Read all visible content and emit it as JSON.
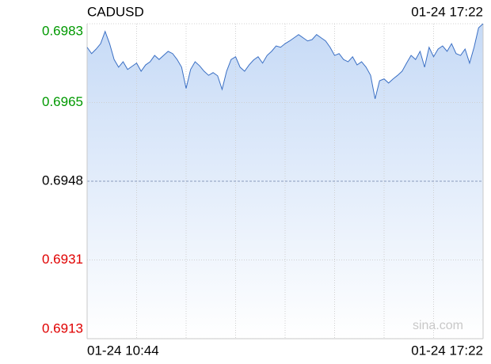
{
  "chart_data": {
    "type": "area-line",
    "title": "CADUSD",
    "timestamp": "01-24 17:22",
    "watermark": "sina.com",
    "x": [
      "01-24 10:44",
      null,
      null,
      null,
      null,
      null,
      null,
      null,
      null,
      null,
      null,
      null,
      null,
      null,
      null,
      null,
      null,
      null,
      null,
      null,
      null,
      null,
      null,
      null,
      null,
      null,
      null,
      null,
      null,
      null,
      null,
      null,
      null,
      null,
      null,
      null,
      null,
      null,
      null,
      null,
      null,
      null,
      null,
      null,
      null,
      null,
      null,
      null,
      null,
      null,
      null,
      null,
      null,
      null,
      null,
      null,
      null,
      null,
      null,
      null,
      null,
      null,
      null,
      null,
      null,
      null,
      null,
      null,
      null,
      null,
      null,
      null,
      null,
      null,
      null,
      null,
      null,
      null,
      null,
      null,
      null,
      null,
      null,
      null,
      null,
      null,
      null,
      null,
      "01-24 17:22"
    ],
    "series": [
      {
        "name": "CADUSD",
        "color": "#3a6fc4",
        "values": [
          0.69776,
          0.69762,
          0.69772,
          0.69784,
          0.69811,
          0.69784,
          0.69749,
          0.69732,
          0.69744,
          0.69727,
          0.69734,
          0.69741,
          0.69723,
          0.69737,
          0.69744,
          0.69758,
          0.69749,
          0.69758,
          0.69767,
          0.69762,
          0.69749,
          0.69732,
          0.69685,
          0.69727,
          0.69744,
          0.69735,
          0.69723,
          0.69714,
          0.6972,
          0.69713,
          0.69683,
          0.69723,
          0.69749,
          0.69755,
          0.69732,
          0.69723,
          0.69737,
          0.69748,
          0.69755,
          0.69741,
          0.69758,
          0.69767,
          0.69779,
          0.69776,
          0.69784,
          0.6979,
          0.69797,
          0.69804,
          0.69797,
          0.6979,
          0.69793,
          0.69804,
          0.69797,
          0.6979,
          0.69776,
          0.69758,
          0.69762,
          0.69749,
          0.69744,
          0.69755,
          0.69737,
          0.69744,
          0.69732,
          0.69714,
          0.69662,
          0.69702,
          0.69706,
          0.69697,
          0.69706,
          0.69714,
          0.69723,
          0.69741,
          0.69758,
          0.69749,
          0.69767,
          0.69732,
          0.69776,
          0.69755,
          0.69772,
          0.69779,
          0.69767,
          0.69784,
          0.69762,
          0.69758,
          0.69772,
          0.69741,
          0.69776,
          0.69819,
          0.69828
        ]
      }
    ],
    "ylim": [
      0.69132,
      0.69828
    ],
    "yticks": [
      {
        "value": 0.69828,
        "label": "0.6983"
      },
      {
        "value": 0.69654,
        "label": "0.6965"
      },
      0.6948,
      {
        "value": 0.69306,
        "label": "0.6931"
      },
      {
        "value": 0.69132,
        "label": "0.6913"
      }
    ],
    "grid": true
  }
}
